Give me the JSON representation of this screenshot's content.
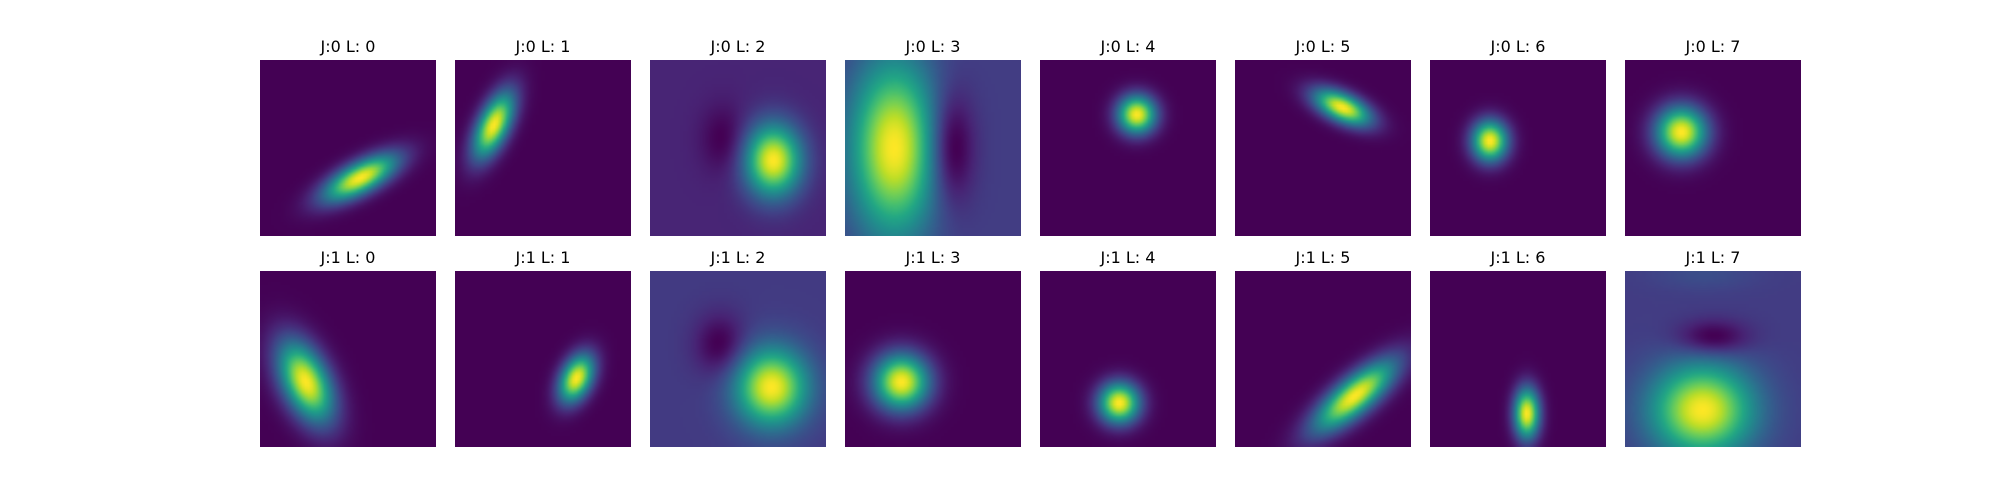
{
  "chart_data": {
    "type": "heatmap",
    "colormap": "viridis",
    "colors": {
      "low": "#440154",
      "mid": "#21918c",
      "high": "#fde725",
      "background": "#ffffff"
    },
    "axes_visible": false,
    "grid": false,
    "rows": 2,
    "cols": 8,
    "panels": [
      {
        "title": "J:0 L: 0",
        "row": 0,
        "col": 0,
        "baseline": 0.08,
        "blobs": [
          {
            "cx": 0.57,
            "cy": 0.67,
            "sx": 0.16,
            "sy": 0.06,
            "angle": -28,
            "amp": 1.0
          }
        ]
      },
      {
        "title": "J:0 L: 1",
        "row": 0,
        "col": 1,
        "baseline": 0.0,
        "blobs": [
          {
            "cx": 0.22,
            "cy": 0.37,
            "sx": 0.06,
            "sy": 0.14,
            "angle": 25,
            "amp": 1.0
          }
        ]
      },
      {
        "title": "J:0 L: 2",
        "row": 0,
        "col": 2,
        "baseline": 0.13,
        "blobs": [
          {
            "cx": 0.7,
            "cy": 0.57,
            "sx": 0.11,
            "sy": 0.14,
            "angle": 0,
            "amp": 0.95
          },
          {
            "cx": 0.42,
            "cy": 0.45,
            "sx": 0.09,
            "sy": 0.13,
            "angle": 0,
            "amp": -0.13
          }
        ]
      },
      {
        "title": "J:0 L: 3",
        "row": 0,
        "col": 3,
        "baseline": 0.28,
        "blobs": [
          {
            "cx": 0.28,
            "cy": 0.5,
            "sx": 0.17,
            "sy": 0.34,
            "angle": 0,
            "amp": 0.78
          },
          {
            "cx": 0.6,
            "cy": 0.5,
            "sx": 0.09,
            "sy": 0.22,
            "angle": 0,
            "amp": -0.28
          }
        ]
      },
      {
        "title": "J:0 L: 4",
        "row": 0,
        "col": 4,
        "baseline": 0.0,
        "blobs": [
          {
            "cx": 0.55,
            "cy": 0.31,
            "sx": 0.075,
            "sy": 0.075,
            "angle": 0,
            "amp": 1.0
          }
        ]
      },
      {
        "title": "J:0 L: 5",
        "row": 0,
        "col": 5,
        "baseline": 0.0,
        "blobs": [
          {
            "cx": 0.61,
            "cy": 0.27,
            "sx": 0.12,
            "sy": 0.055,
            "angle": 25,
            "amp": 1.0
          }
        ]
      },
      {
        "title": "J:0 L: 6",
        "row": 0,
        "col": 6,
        "baseline": 0.0,
        "blobs": [
          {
            "cx": 0.34,
            "cy": 0.46,
            "sx": 0.07,
            "sy": 0.08,
            "angle": 0,
            "amp": 1.0
          }
        ]
      },
      {
        "title": "J:0 L: 7",
        "row": 0,
        "col": 7,
        "baseline": 0.05,
        "blobs": [
          {
            "cx": 0.32,
            "cy": 0.41,
            "sx": 0.1,
            "sy": 0.1,
            "angle": 0,
            "amp": 1.0
          }
        ]
      },
      {
        "title": "J:1 L: 0",
        "row": 1,
        "col": 0,
        "baseline": 0.0,
        "blobs": [
          {
            "cx": 0.26,
            "cy": 0.63,
            "sx": 0.09,
            "sy": 0.17,
            "angle": -25,
            "amp": 1.0
          }
        ]
      },
      {
        "title": "J:1 L: 1",
        "row": 1,
        "col": 1,
        "baseline": 0.0,
        "blobs": [
          {
            "cx": 0.69,
            "cy": 0.61,
            "sx": 0.06,
            "sy": 0.1,
            "angle": 25,
            "amp": 1.0
          }
        ]
      },
      {
        "title": "J:1 L: 2",
        "row": 1,
        "col": 2,
        "baseline": 0.2,
        "blobs": [
          {
            "cx": 0.69,
            "cy": 0.66,
            "sx": 0.14,
            "sy": 0.15,
            "angle": 0,
            "amp": 0.85
          },
          {
            "cx": 0.4,
            "cy": 0.42,
            "sx": 0.1,
            "sy": 0.12,
            "angle": 0,
            "amp": -0.2
          }
        ]
      },
      {
        "title": "J:1 L: 3",
        "row": 1,
        "col": 3,
        "baseline": 0.07,
        "blobs": [
          {
            "cx": 0.32,
            "cy": 0.63,
            "sx": 0.11,
            "sy": 0.11,
            "angle": -20,
            "amp": 1.0
          }
        ]
      },
      {
        "title": "J:1 L: 4",
        "row": 1,
        "col": 4,
        "baseline": 0.0,
        "blobs": [
          {
            "cx": 0.45,
            "cy": 0.75,
            "sx": 0.08,
            "sy": 0.08,
            "angle": 0,
            "amp": 1.0
          }
        ]
      },
      {
        "title": "J:1 L: 5",
        "row": 1,
        "col": 5,
        "baseline": 0.0,
        "blobs": [
          {
            "cx": 0.68,
            "cy": 0.71,
            "sx": 0.2,
            "sy": 0.07,
            "angle": -40,
            "amp": 1.0
          }
        ]
      },
      {
        "title": "J:1 L: 6",
        "row": 1,
        "col": 6,
        "baseline": 0.0,
        "blobs": [
          {
            "cx": 0.55,
            "cy": 0.81,
            "sx": 0.05,
            "sy": 0.1,
            "angle": 0,
            "amp": 1.0
          }
        ]
      },
      {
        "title": "J:1 L: 7",
        "row": 1,
        "col": 7,
        "baseline": 0.24,
        "blobs": [
          {
            "cx": 0.44,
            "cy": 0.79,
            "sx": 0.2,
            "sy": 0.18,
            "angle": 0,
            "amp": 0.78
          },
          {
            "cx": 0.5,
            "cy": 0.38,
            "sx": 0.14,
            "sy": 0.07,
            "angle": 0,
            "amp": -0.22
          },
          {
            "cx": 0.45,
            "cy": 0.02,
            "sx": 0.2,
            "sy": 0.06,
            "angle": 0,
            "amp": 0.06
          }
        ]
      }
    ]
  }
}
